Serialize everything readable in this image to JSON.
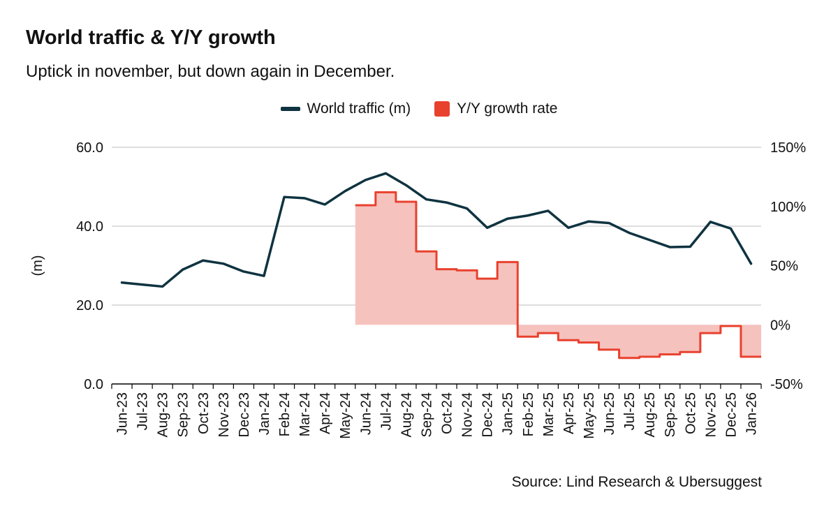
{
  "title": "World traffic & Y/Y growth",
  "subtitle": "Uptick in november, but down again in December.",
  "source": "Source: Lind Research & Ubersuggest",
  "colors": {
    "traffic": "#0f3340",
    "growth_line": "#e8412e",
    "growth_fill": "#f6c2bd",
    "grid": "#c9c9c9"
  },
  "chart_data": {
    "type": "line",
    "categories": [
      "Jun-23",
      "Jul-23",
      "Aug-23",
      "Sep-23",
      "Oct-23",
      "Nov-23",
      "Dec-23",
      "Jan-24",
      "Feb-24",
      "Mar-24",
      "Apr-24",
      "May-24",
      "Jun-24",
      "Jul-24",
      "Aug-24",
      "Sep-24",
      "Oct-24",
      "Nov-24",
      "Dec-24",
      "Jan-25",
      "Feb-25",
      "Mar-25",
      "Apr-25",
      "May-25",
      "Jun-25",
      "Jul-25",
      "Aug-25",
      "Sep-25",
      "Oct-25",
      "Nov-25",
      "Dec-25",
      "Jan-26"
    ],
    "series": [
      {
        "name": "World traffic (m)",
        "type": "line",
        "axis": "left",
        "values": [
          25.7,
          25.2,
          24.7,
          29.0,
          31.3,
          30.5,
          28.5,
          27.4,
          47.4,
          47.1,
          45.5,
          48.9,
          51.7,
          53.4,
          50.4,
          46.8,
          46.0,
          44.5,
          39.6,
          41.9,
          42.7,
          43.9,
          39.6,
          41.2,
          40.8,
          38.3,
          36.5,
          34.7,
          34.8,
          41.1,
          39.4,
          30.5
        ]
      },
      {
        "name": "Y/Y growth rate",
        "type": "step-area",
        "axis": "right",
        "values": [
          null,
          null,
          null,
          null,
          null,
          null,
          null,
          null,
          null,
          null,
          null,
          null,
          101,
          112,
          104,
          62,
          47,
          46,
          39,
          53,
          -10,
          -7,
          -13,
          -15,
          -21,
          -28,
          -27,
          -25,
          -23,
          -7,
          -1,
          -27
        ]
      }
    ],
    "ylabel": "(m)",
    "ylim": [
      0,
      60
    ],
    "yticks": [
      "0.0",
      "20.0",
      "40.0",
      "60.0"
    ],
    "y2lim": [
      -50,
      150
    ],
    "y2ticks": [
      "-50%",
      "0%",
      "50%",
      "100%",
      "150%"
    ],
    "grid": true,
    "legend_position": "top-center"
  }
}
